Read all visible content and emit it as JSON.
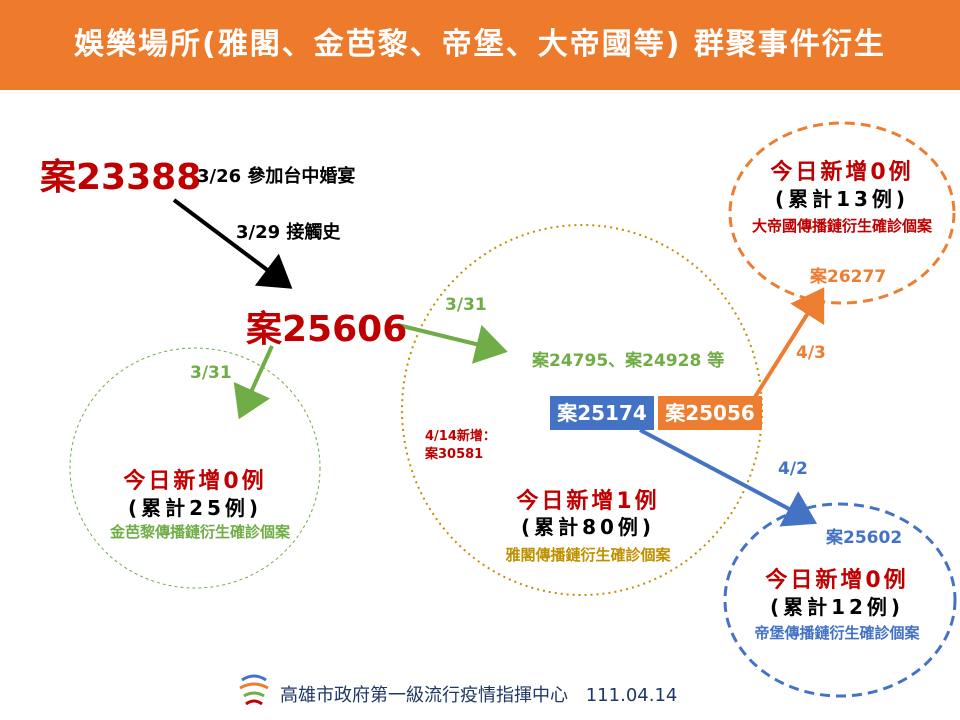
{
  "title": "娛樂場所(雅閣、金芭黎、帝堡、大帝國等) 群聚事件衍生",
  "case_23388": {
    "id": "案23388",
    "note": "3/26 參加台中婚宴"
  },
  "contact_note": "3/29 接觸史",
  "case_25606": "案25606",
  "jinbali": {
    "date": "3/31",
    "today": "今日新增0例",
    "cumulative": "(累計25例)",
    "label": "金芭黎傳播鏈衍生確診個案"
  },
  "yage": {
    "date": "3/31",
    "cases": "案24795、案24928 等",
    "new_note_line1": "4/14新增：",
    "new_note_line2": "案30581",
    "case_25174": "案25174",
    "case_25056": "案25056",
    "today": "今日新增1例",
    "cumulative": "(累計80例)",
    "label": "雅閣傳播鏈衍生確診個案"
  },
  "dadiguo": {
    "date": "4/3",
    "today": "今日新增0例",
    "cumulative": "(累計13例)",
    "label": "大帝國傳播鏈衍生確診個案",
    "case": "案26277"
  },
  "dibao": {
    "date": "4/2",
    "case": "案25602",
    "today": "今日新增0例",
    "cumulative": "(累計12例)",
    "label": "帝堡傳播鏈衍生確診個案"
  },
  "footer": {
    "org": "高雄市政府第一級流行疫情指揮中心",
    "date": "111.04.14",
    "logo": "kaohsiung-logo-icon"
  },
  "colors": {
    "header": "#ee7b2c",
    "red": "#c00000",
    "green": "#70ad47",
    "gold": "#bf9000",
    "orange": "#ed7d31",
    "blue": "#4472c4"
  }
}
